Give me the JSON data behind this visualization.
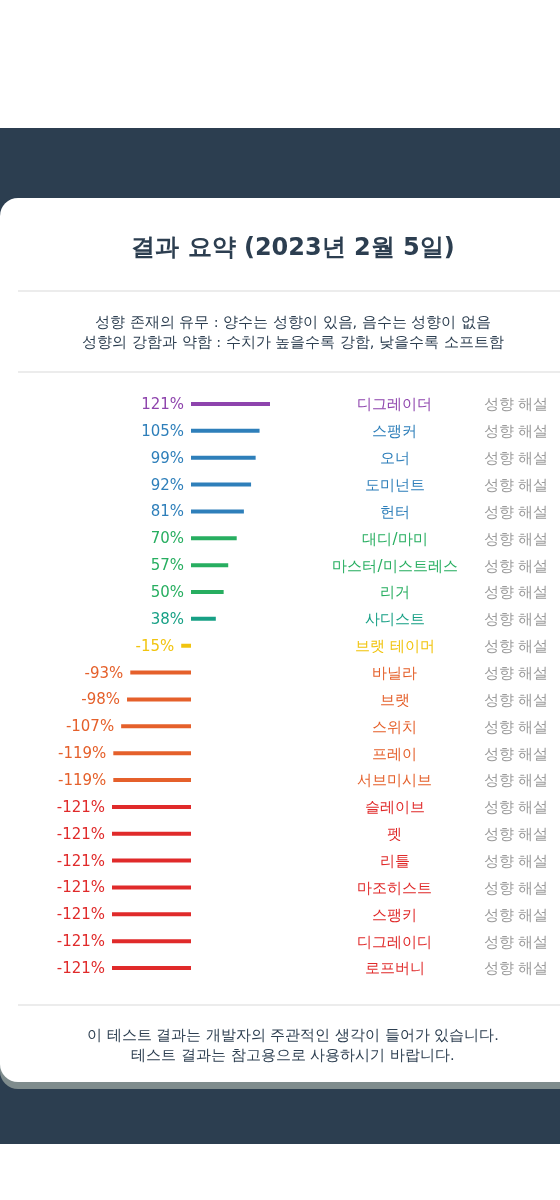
{
  "chart_data": {
    "type": "bar",
    "orientation": "horizontal",
    "title": "결과 요약 (2023년 2월 5일)",
    "subtitle": "성향 존재의 유무 : 양수는 성향이 있음, 음수는 성향이 없음\n성향의 강함과 약함 : 수치가 높을수록 강함, 낮을수록 소프트함",
    "categories": [
      "디그레이더",
      "스팽커",
      "오너",
      "도미넌트",
      "헌터",
      "대디/마미",
      "마스터/미스트레스",
      "리거",
      "사디스트",
      "브랫 테이머",
      "바닐라",
      "브랫",
      "스위치",
      "프레이",
      "서브미시브",
      "슬레이브",
      "펫",
      "리틀",
      "마조히스트",
      "스팽키",
      "디그레이디",
      "로프버니"
    ],
    "y2_categories": [
      "성향 해설",
      "성향 해설",
      "성향 해설",
      "성향 해설",
      "성향 해설",
      "성향 해설",
      "성향 해설",
      "성향 해설",
      "성향 해설",
      "성향 해설",
      "성향 해설",
      "성향 해설",
      "성향 해설",
      "성향 해설",
      "성향 해설",
      "성향 해설",
      "성향 해설",
      "성향 해설",
      "성향 해설",
      "성향 해설",
      "성향 해설",
      "성향 해설"
    ],
    "values": [
      121,
      105,
      99,
      92,
      81,
      70,
      57,
      50,
      38,
      -15,
      -93,
      -98,
      -107,
      -119,
      -119,
      -121,
      -121,
      -121,
      -121,
      -121,
      -121,
      -121
    ],
    "colors": [
      "#8e44ad",
      "#2e7fba",
      "#2e7fba",
      "#2e7fba",
      "#2e7fba",
      "#27ae60",
      "#27ae60",
      "#27ae60",
      "#17a085",
      "#f1c40f",
      "#e5602b",
      "#e5602b",
      "#e5602b",
      "#e5602b",
      "#e5602b",
      "#e02a2a",
      "#e02a2a",
      "#e02a2a",
      "#e02a2a",
      "#e02a2a",
      "#e02a2a",
      "#e02a2a"
    ],
    "value_labels": [
      "121%",
      "105%",
      "99%",
      "92%",
      "81%",
      "70%",
      "57%",
      "50%",
      "38%",
      "-15%",
      "-93%",
      "-98%",
      "-107%",
      "-119%",
      "-119%",
      "-121%",
      "-121%",
      "-121%",
      "-121%",
      "-121%",
      "-121%",
      "-121%"
    ],
    "tick_labels": "y",
    "annotations": [
      "이 테스트 결과는 개발자의 주관적인 생각이 들어가 있습니다.",
      "테스트 결과는 참고용으로 사용하시기 바랍니다."
    ]
  }
}
